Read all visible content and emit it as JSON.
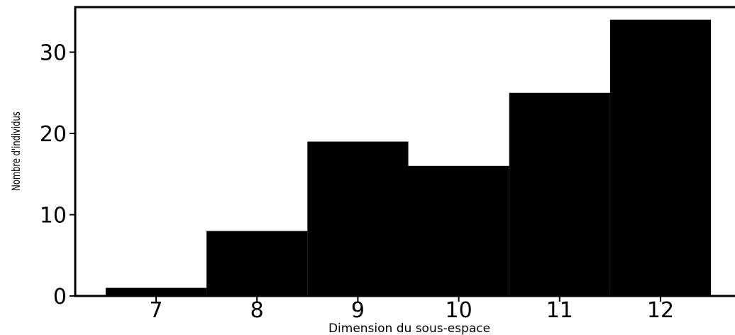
{
  "chart_data": {
    "type": "bar",
    "categories": [
      "7",
      "8",
      "9",
      "10",
      "11",
      "12"
    ],
    "values": [
      1,
      8,
      19,
      16,
      25,
      34
    ],
    "xlabel": "Dimension du sous-espace",
    "ylabel": "Nombre d'individus",
    "ylim": [
      0,
      35.7
    ],
    "xlim": [
      6.3,
      12.7
    ],
    "yticks": [
      0,
      10,
      20,
      30
    ],
    "yticklabels": [
      "0",
      "10",
      "20",
      "30"
    ],
    "grid": false,
    "bar_color": "#000000"
  }
}
